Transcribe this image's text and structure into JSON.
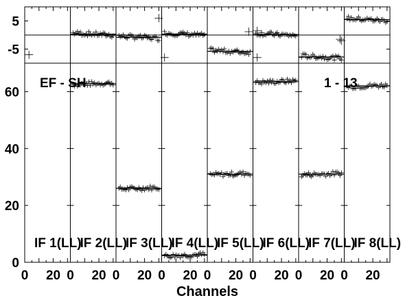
{
  "chart_data": {
    "type": "scatter",
    "xlabel": "Channels",
    "source_label": "EF - SH",
    "baseline_label": "1 - 13",
    "xlim": [
      0,
      32
    ],
    "x_ticks": [
      0,
      20
    ],
    "top_panel": {
      "ylim": [
        -10,
        10
      ],
      "y_ticks": [
        5,
        -5
      ]
    },
    "bottom_panel": {
      "ylim": [
        0,
        70
      ],
      "y_ticks": [
        0,
        20,
        40,
        60
      ]
    },
    "if_panels": [
      {
        "label": "IF 1(LL)",
        "amp_level": null,
        "phase_level": null,
        "outliers": [
          {
            "x": 3,
            "y": -7
          }
        ]
      },
      {
        "label": "IF 2(LL)",
        "amp_level": 62.8,
        "phase_level": 0.3,
        "outliers": []
      },
      {
        "label": "IF 3(LL)",
        "amp_level": 26.0,
        "phase_level": -0.8,
        "outliers": [
          {
            "x": 30,
            "y": 6
          }
        ]
      },
      {
        "label": "IF 4(LL)",
        "amp_level": 2.5,
        "phase_level": 0.3,
        "outliers": [
          {
            "x": 2,
            "y": -8
          }
        ]
      },
      {
        "label": "IF 5(LL)",
        "amp_level": 31.0,
        "phase_level": -5.8,
        "outliers": [
          {
            "x": 29,
            "y": 1.2
          }
        ]
      },
      {
        "label": "IF 6(LL)",
        "amp_level": 63.5,
        "phase_level": 0.2,
        "outliers": [
          {
            "x": 3,
            "y": -8
          },
          {
            "x": 3,
            "y": 1.5
          }
        ]
      },
      {
        "label": "IF 7(LL)",
        "amp_level": 31.0,
        "phase_level": -7.8,
        "outliers": [
          {
            "x": 29,
            "y": -1.5
          },
          {
            "x": 30,
            "y": -2
          }
        ]
      },
      {
        "label": "IF 8(LL)",
        "amp_level": 62.0,
        "phase_level": 5.5,
        "outliers": []
      }
    ]
  }
}
